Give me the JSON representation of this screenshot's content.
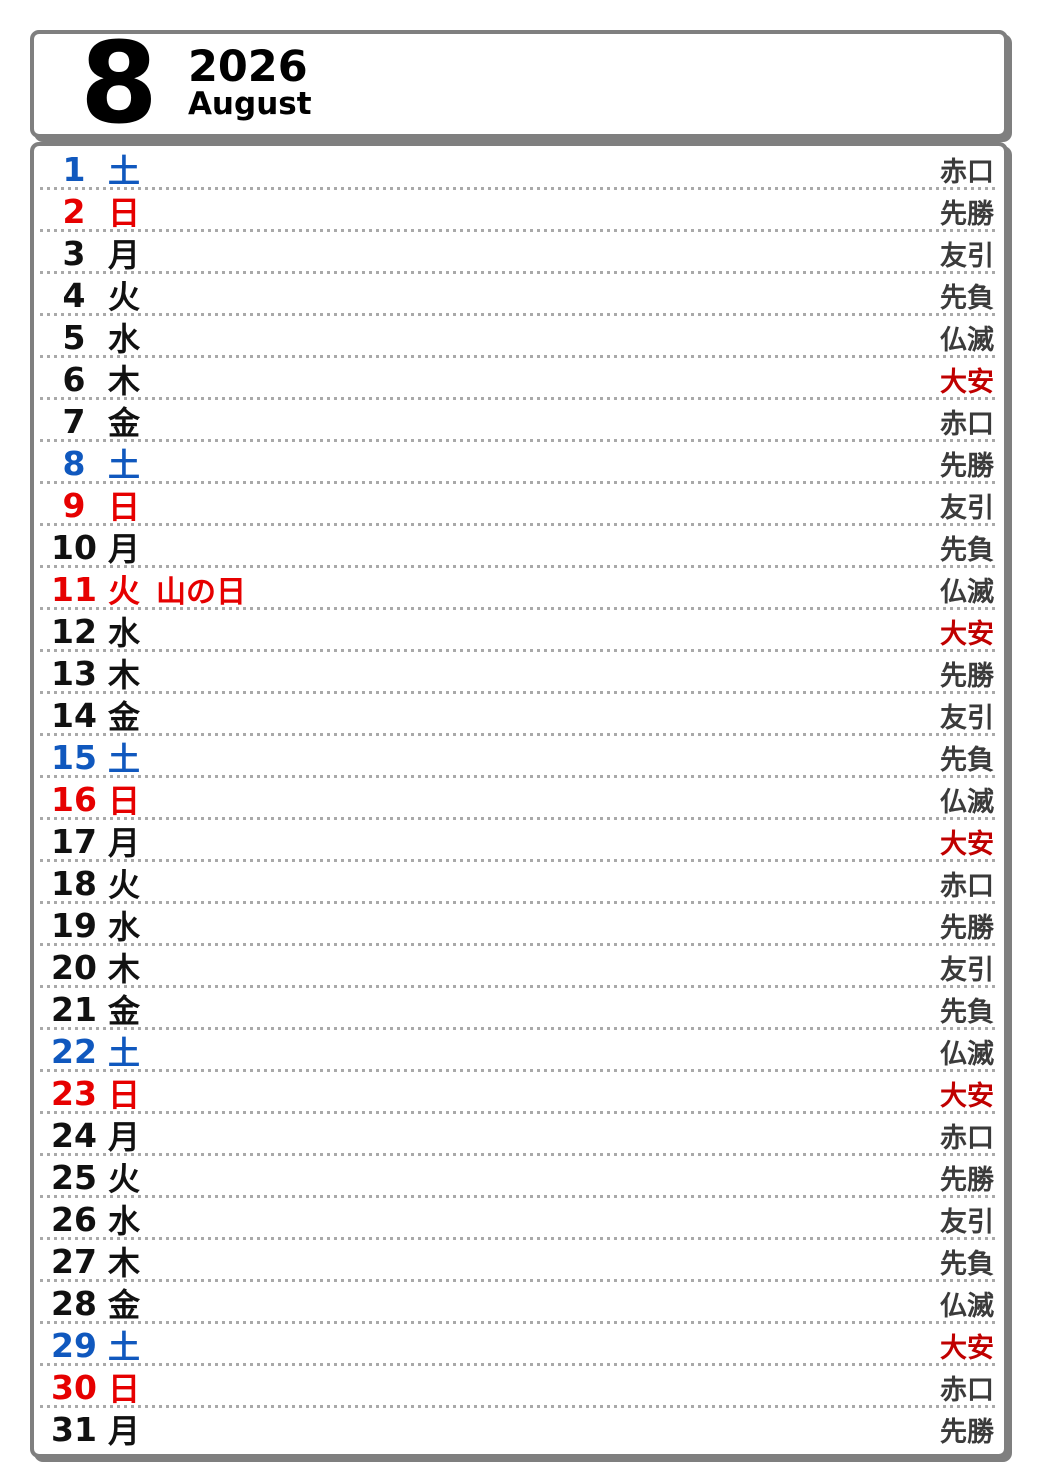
{
  "header": {
    "month_number": "8",
    "year": "2026",
    "month_name": "August"
  },
  "colors": {
    "border_gray": "#7f7f7f",
    "dotted_separator": "#a9a9a9",
    "saturday_blue": "#1058be",
    "sunday_holiday_red": "#e60000",
    "weekday_black": "#111111",
    "rokuyo_gray": "#3b3b3b",
    "taian_red": "#c00000"
  },
  "days": [
    {
      "date": "1",
      "weekday": "土",
      "type": "sat",
      "holiday": "",
      "rokuyo": "赤口"
    },
    {
      "date": "2",
      "weekday": "日",
      "type": "sun",
      "holiday": "",
      "rokuyo": "先勝"
    },
    {
      "date": "3",
      "weekday": "月",
      "type": "normal",
      "holiday": "",
      "rokuyo": "友引"
    },
    {
      "date": "4",
      "weekday": "火",
      "type": "normal",
      "holiday": "",
      "rokuyo": "先負"
    },
    {
      "date": "5",
      "weekday": "水",
      "type": "normal",
      "holiday": "",
      "rokuyo": "仏滅"
    },
    {
      "date": "6",
      "weekday": "木",
      "type": "normal",
      "holiday": "",
      "rokuyo": "大安"
    },
    {
      "date": "7",
      "weekday": "金",
      "type": "normal",
      "holiday": "",
      "rokuyo": "赤口"
    },
    {
      "date": "8",
      "weekday": "土",
      "type": "sat",
      "holiday": "",
      "rokuyo": "先勝"
    },
    {
      "date": "9",
      "weekday": "日",
      "type": "sun",
      "holiday": "",
      "rokuyo": "友引"
    },
    {
      "date": "10",
      "weekday": "月",
      "type": "normal",
      "holiday": "",
      "rokuyo": "先負"
    },
    {
      "date": "11",
      "weekday": "火",
      "type": "holiday",
      "holiday": "山の日",
      "rokuyo": "仏滅"
    },
    {
      "date": "12",
      "weekday": "水",
      "type": "normal",
      "holiday": "",
      "rokuyo": "大安"
    },
    {
      "date": "13",
      "weekday": "木",
      "type": "normal",
      "holiday": "",
      "rokuyo": "先勝"
    },
    {
      "date": "14",
      "weekday": "金",
      "type": "normal",
      "holiday": "",
      "rokuyo": "友引"
    },
    {
      "date": "15",
      "weekday": "土",
      "type": "sat",
      "holiday": "",
      "rokuyo": "先負"
    },
    {
      "date": "16",
      "weekday": "日",
      "type": "sun",
      "holiday": "",
      "rokuyo": "仏滅"
    },
    {
      "date": "17",
      "weekday": "月",
      "type": "normal",
      "holiday": "",
      "rokuyo": "大安"
    },
    {
      "date": "18",
      "weekday": "火",
      "type": "normal",
      "holiday": "",
      "rokuyo": "赤口"
    },
    {
      "date": "19",
      "weekday": "水",
      "type": "normal",
      "holiday": "",
      "rokuyo": "先勝"
    },
    {
      "date": "20",
      "weekday": "木",
      "type": "normal",
      "holiday": "",
      "rokuyo": "友引"
    },
    {
      "date": "21",
      "weekday": "金",
      "type": "normal",
      "holiday": "",
      "rokuyo": "先負"
    },
    {
      "date": "22",
      "weekday": "土",
      "type": "sat",
      "holiday": "",
      "rokuyo": "仏滅"
    },
    {
      "date": "23",
      "weekday": "日",
      "type": "sun",
      "holiday": "",
      "rokuyo": "大安"
    },
    {
      "date": "24",
      "weekday": "月",
      "type": "normal",
      "holiday": "",
      "rokuyo": "赤口"
    },
    {
      "date": "25",
      "weekday": "火",
      "type": "normal",
      "holiday": "",
      "rokuyo": "先勝"
    },
    {
      "date": "26",
      "weekday": "水",
      "type": "normal",
      "holiday": "",
      "rokuyo": "友引"
    },
    {
      "date": "27",
      "weekday": "木",
      "type": "normal",
      "holiday": "",
      "rokuyo": "先負"
    },
    {
      "date": "28",
      "weekday": "金",
      "type": "normal",
      "holiday": "",
      "rokuyo": "仏滅"
    },
    {
      "date": "29",
      "weekday": "土",
      "type": "sat",
      "holiday": "",
      "rokuyo": "大安"
    },
    {
      "date": "30",
      "weekday": "日",
      "type": "sun",
      "holiday": "",
      "rokuyo": "赤口"
    },
    {
      "date": "31",
      "weekday": "月",
      "type": "normal",
      "holiday": "",
      "rokuyo": "先勝"
    }
  ]
}
